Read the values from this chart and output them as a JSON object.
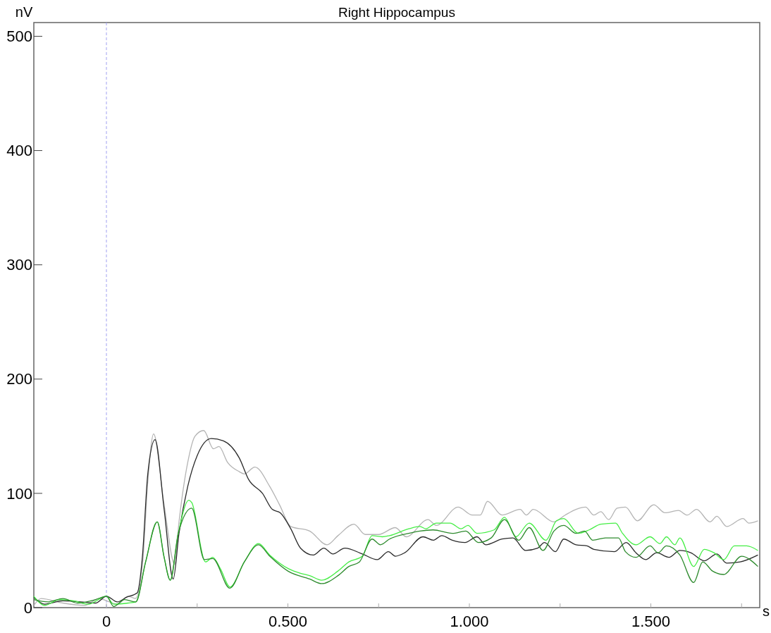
{
  "chart_data": {
    "type": "line",
    "title": "Right Hippocampus",
    "xlabel": "s",
    "ylabel": "nV",
    "xlim": [
      -0.2,
      1.8
    ],
    "xticks": [
      {
        "value": 0,
        "label": "0"
      },
      {
        "value": 0.25,
        "label": null
      },
      {
        "value": 0.5,
        "label": "0.500"
      },
      {
        "value": 0.75,
        "label": null
      },
      {
        "value": 1,
        "label": "1.000"
      },
      {
        "value": 1.25,
        "label": null
      },
      {
        "value": 1.5,
        "label": "1.500"
      },
      {
        "value": 1.75,
        "label": null
      }
    ],
    "ylim": [
      0,
      512
    ],
    "yticks": [
      0,
      100,
      200,
      300,
      400,
      500
    ],
    "grid": false,
    "line_style": "solid",
    "ref_lines": [
      {
        "axis": "x",
        "value": 0,
        "color": "#a0a0f0",
        "line_style": "dashed"
      }
    ],
    "series": [
      {
        "color": "#b4b4b4",
        "x": [
          -0.2,
          -0.18,
          -0.12,
          -0.06,
          -0.02,
          0,
          0.03,
          0.06,
          0.08,
          0.1,
          0.114,
          0.13,
          0.159,
          0.188,
          0.2,
          0.224,
          0.244,
          0.268,
          0.295,
          0.31,
          0.334,
          0.366,
          0.38,
          0.409,
          0.45,
          0.477,
          0.508,
          0.56,
          0.608,
          0.638,
          0.682,
          0.713,
          0.75,
          0.796,
          0.826,
          0.886,
          0.909,
          0.969,
          1.008,
          1.03,
          1.05,
          1.09,
          1.14,
          1.157,
          1.176,
          1.233,
          1.264,
          1.294,
          1.32,
          1.343,
          1.362,
          1.384,
          1.407,
          1.43,
          1.463,
          1.508,
          1.539,
          1.576,
          1.6,
          1.626,
          1.663,
          1.682,
          1.709,
          1.754,
          1.77,
          1.795
        ],
        "values": [
          2,
          8,
          4,
          2,
          8,
          6,
          3,
          10,
          8,
          40,
          110,
          152,
          90,
          38,
          75,
          127,
          150,
          155,
          139,
          141,
          127,
          119,
          117,
          123,
          106,
          90,
          71,
          67,
          55,
          63,
          73,
          64,
          64,
          70,
          62,
          77,
          72,
          88,
          81,
          81,
          93,
          81,
          86,
          81,
          86,
          75,
          81,
          86,
          88,
          81,
          84,
          77,
          87,
          88,
          76,
          90,
          83,
          85,
          81,
          86,
          75,
          80,
          71,
          78,
          74,
          76
        ]
      },
      {
        "color": "#2a2a2a",
        "x": [
          -0.2,
          -0.17,
          -0.12,
          -0.07,
          -0.03,
          0,
          0.03,
          0.055,
          0.085,
          0.099,
          0.114,
          0.134,
          0.159,
          0.184,
          0.2,
          0.224,
          0.25,
          0.289,
          0.322,
          0.366,
          0.392,
          0.43,
          0.457,
          0.479,
          0.508,
          0.535,
          0.57,
          0.599,
          0.624,
          0.657,
          0.705,
          0.746,
          0.777,
          0.796,
          0.822,
          0.872,
          0.901,
          0.924,
          0.953,
          0.988,
          1.021,
          1.045,
          1.09,
          1.12,
          1.155,
          1.188,
          1.207,
          1.237,
          1.26,
          1.294,
          1.324,
          1.343,
          1.4,
          1.432,
          1.459,
          1.486,
          1.516,
          1.55,
          1.58,
          1.61,
          1.647,
          1.682,
          1.709,
          1.746,
          1.795
        ],
        "values": [
          9,
          3,
          6,
          5,
          4,
          10,
          5,
          9,
          13,
          44,
          117,
          147,
          86,
          25,
          65,
          106,
          133,
          148,
          146,
          131,
          112,
          100,
          86,
          83,
          69,
          52,
          46,
          52,
          47,
          52,
          47,
          42,
          49,
          45,
          48,
          62,
          59,
          63,
          59,
          57,
          62,
          55,
          60,
          61,
          50,
          52,
          57,
          49,
          60,
          55,
          54,
          51,
          49,
          57,
          48,
          42,
          48,
          44,
          50,
          48,
          41,
          47,
          39,
          40,
          46
        ]
      },
      {
        "color": "#44ee44",
        "x": [
          -0.2,
          -0.17,
          -0.13,
          -0.09,
          -0.05,
          0,
          0.02,
          0.06,
          0.081,
          0.108,
          0.14,
          0.159,
          0.176,
          0.198,
          0.227,
          0.235,
          0.273,
          0.293,
          0.314,
          0.341,
          0.38,
          0.419,
          0.45,
          0.502,
          0.535,
          0.56,
          0.593,
          0.638,
          0.668,
          0.705,
          0.732,
          0.76,
          0.78,
          0.833,
          0.864,
          0.88,
          0.909,
          0.947,
          0.977,
          0.996,
          1.021,
          1.068,
          1.097,
          1.128,
          1.165,
          1.211,
          1.24,
          1.26,
          1.3,
          1.33,
          1.362,
          1.403,
          1.422,
          1.459,
          1.498,
          1.525,
          1.543,
          1.566,
          1.58,
          1.618,
          1.647,
          1.674,
          1.701,
          1.73,
          1.764,
          1.795
        ],
        "values": [
          10,
          2,
          7,
          6,
          3,
          10,
          3,
          4,
          5,
          40,
          75,
          44,
          24,
          65,
          94,
          92,
          40,
          44,
          34,
          18,
          40,
          56,
          46,
          34,
          30,
          28,
          24,
          32,
          40,
          45,
          63,
          62,
          63,
          69,
          71,
          69,
          74,
          74,
          69,
          72,
          65,
          68,
          79,
          62,
          74,
          59,
          76,
          78,
          65,
          68,
          73,
          74,
          65,
          55,
          62,
          56,
          62,
          55,
          61,
          36,
          51,
          48,
          42,
          54,
          54,
          50
        ]
      },
      {
        "color": "#2e8b2e",
        "x": [
          -0.2,
          -0.16,
          -0.12,
          -0.08,
          -0.03,
          0,
          0.02,
          0.05,
          0.081,
          0.108,
          0.14,
          0.159,
          0.176,
          0.198,
          0.235,
          0.27,
          0.293,
          0.34,
          0.38,
          0.419,
          0.45,
          0.5,
          0.56,
          0.593,
          0.638,
          0.668,
          0.697,
          0.732,
          0.755,
          0.78,
          0.833,
          0.864,
          0.9,
          0.953,
          0.99,
          1.025,
          1.06,
          1.097,
          1.136,
          1.165,
          1.203,
          1.233,
          1.26,
          1.294,
          1.317,
          1.34,
          1.375,
          1.411,
          1.43,
          1.459,
          1.498,
          1.52,
          1.543,
          1.58,
          1.618,
          1.643,
          1.67,
          1.701,
          1.75,
          1.795
        ],
        "values": [
          7,
          5,
          8,
          4,
          7,
          10,
          1,
          7,
          5,
          40,
          75,
          44,
          24,
          65,
          87,
          42,
          43,
          17,
          40,
          55,
          45,
          32,
          25,
          21,
          28,
          36,
          40,
          60,
          55,
          60,
          65,
          67,
          68,
          65,
          67,
          57,
          61,
          77,
          59,
          70,
          50,
          67,
          72,
          65,
          67,
          59,
          61,
          61,
          49,
          44,
          54,
          48,
          54,
          46,
          22,
          40,
          32,
          29,
          45,
          36
        ]
      }
    ]
  }
}
